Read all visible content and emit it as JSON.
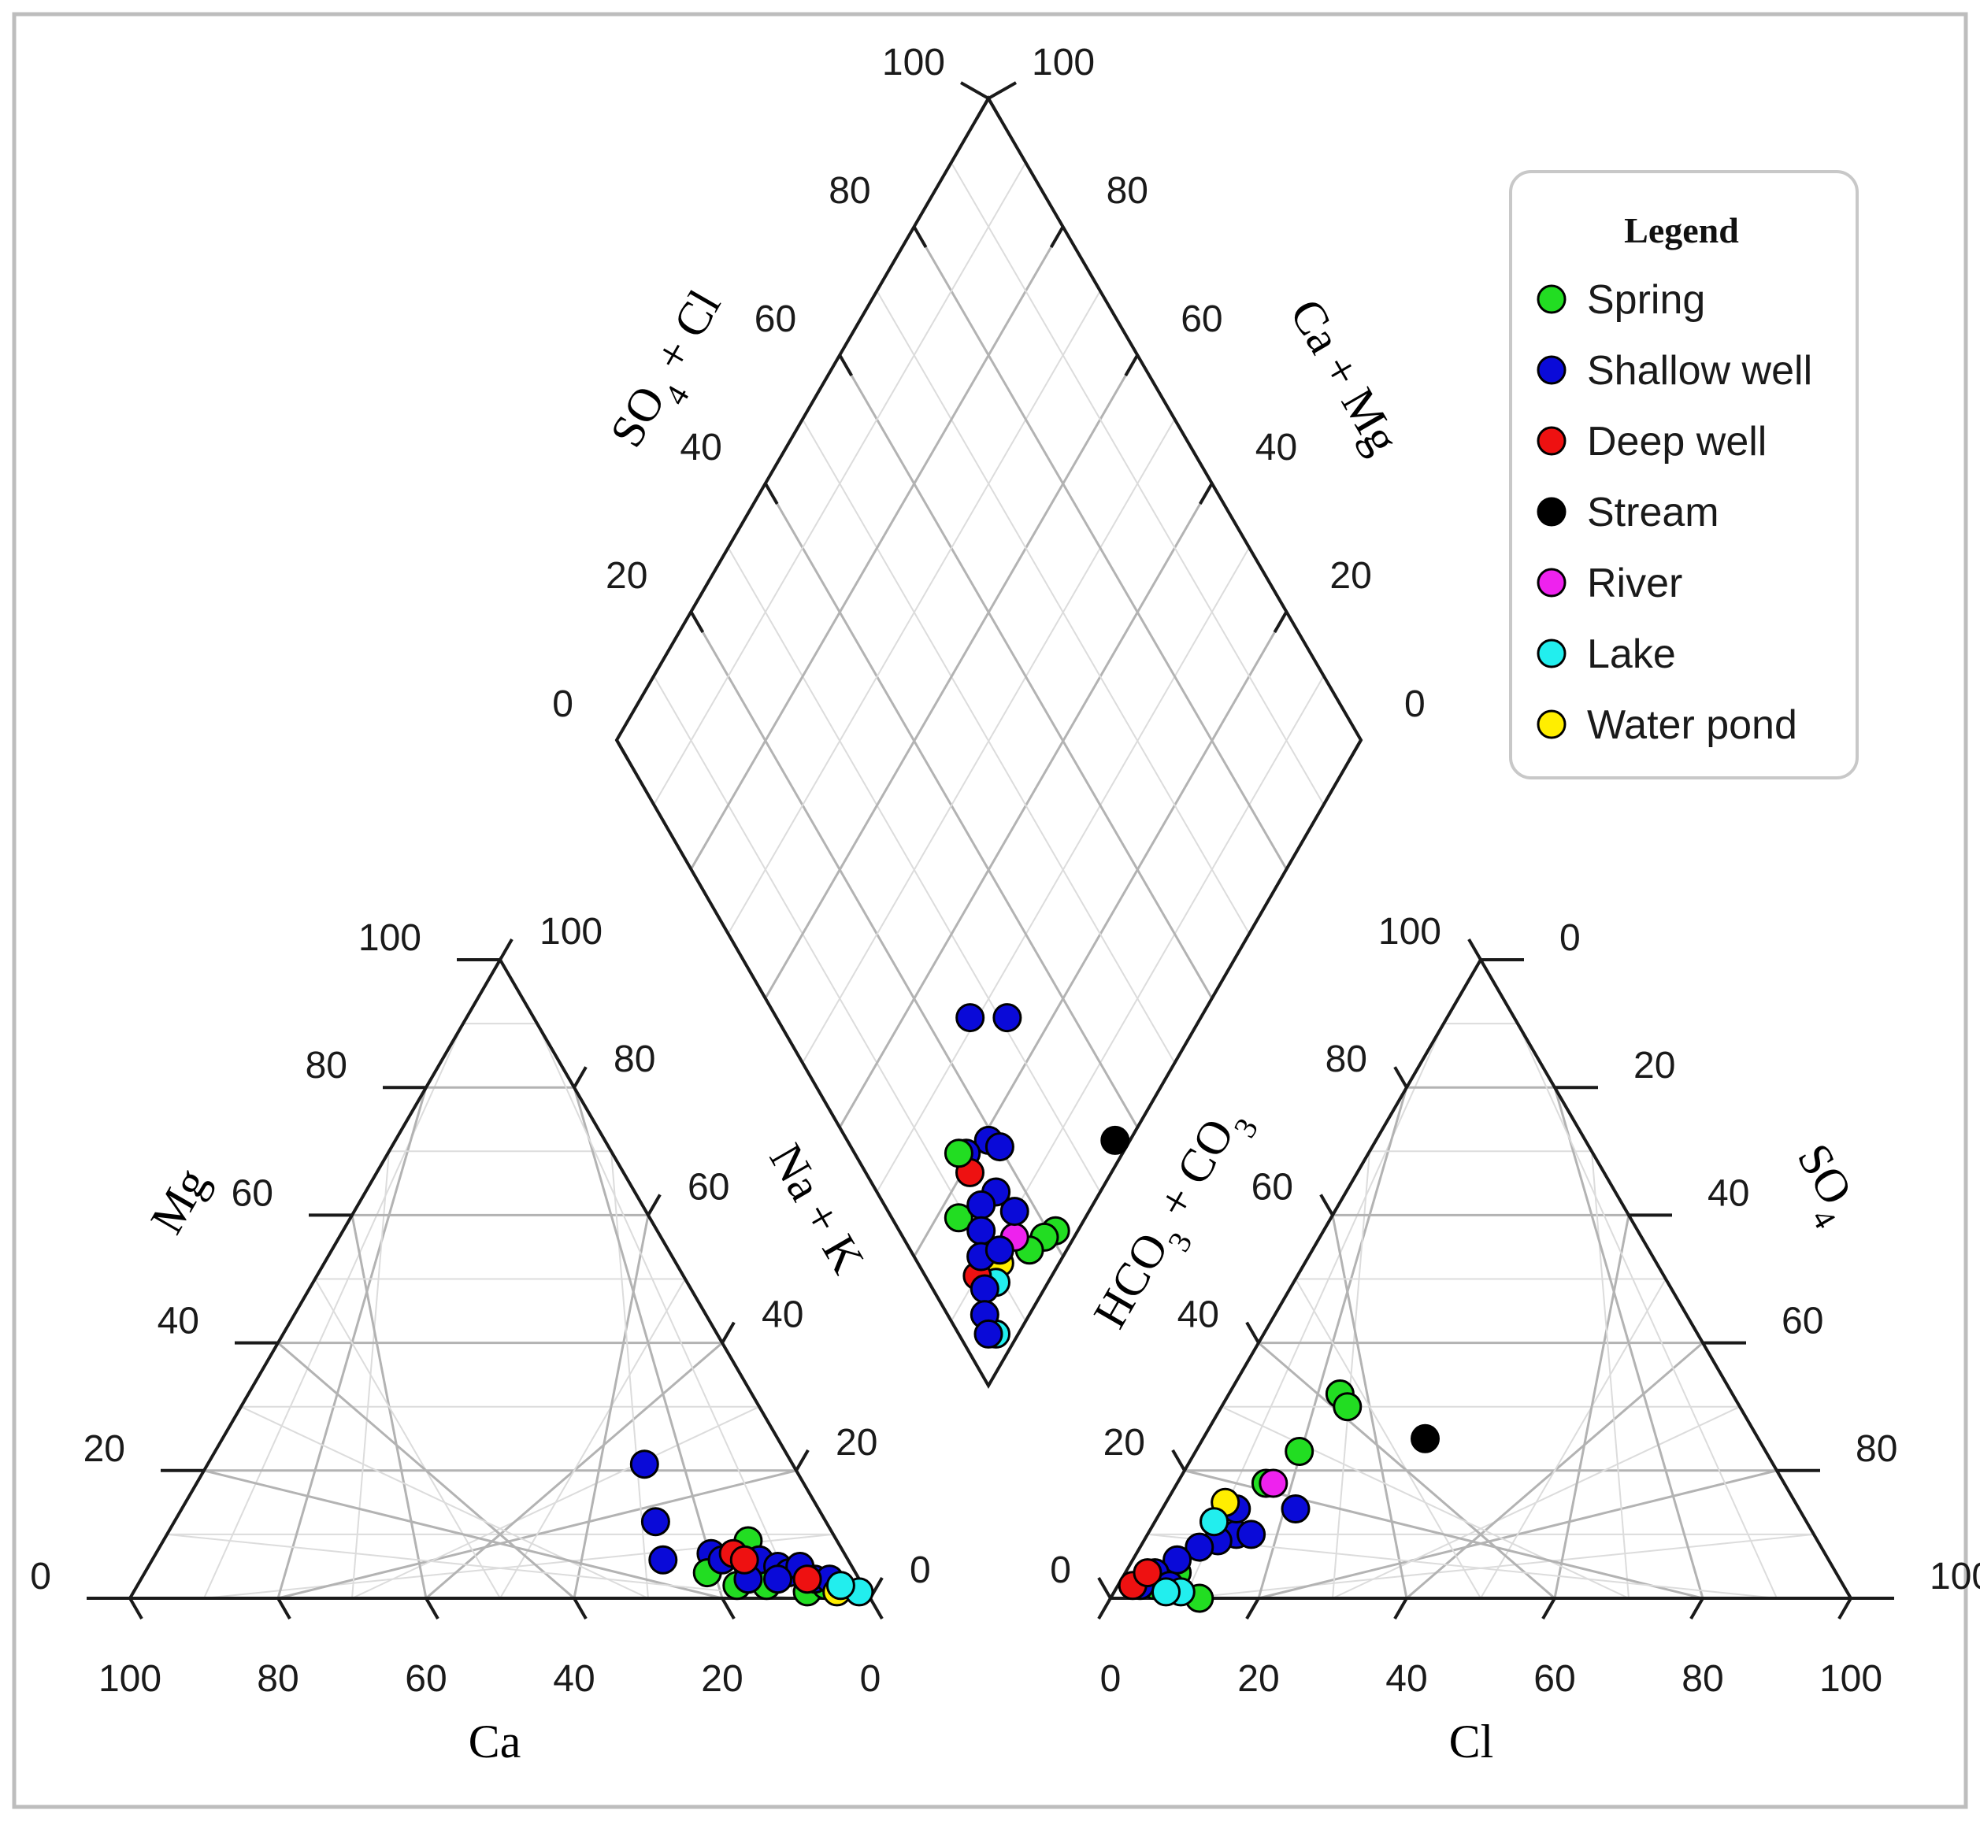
{
  "chart_data": {
    "type": "scatter",
    "diagram": "Piper",
    "legend": {
      "title": "Legend",
      "placement": "top-right",
      "items": [
        {
          "label": "Spring",
          "color": "#22dd22"
        },
        {
          "label": "Shallow well",
          "color": "#0a0ad8"
        },
        {
          "label": "Deep well",
          "color": "#ee1111"
        },
        {
          "label": "Stream",
          "color": "#000000"
        },
        {
          "label": "River",
          "color": "#ee22ee"
        },
        {
          "label": "Lake",
          "color": "#22eeee"
        },
        {
          "label": "Water pond",
          "color": "#ffee00"
        }
      ]
    },
    "cation_triangle": {
      "axis_labels": {
        "bottom": "Ca",
        "left": "Mg",
        "right": "Na + K"
      },
      "ticks": {
        "bottom": [
          "100",
          "80",
          "60",
          "40",
          "20",
          "0"
        ],
        "left": [
          "0",
          "20",
          "40",
          "60",
          "80",
          "100"
        ],
        "right": [
          "0",
          "20",
          "40",
          "60",
          "80",
          "100"
        ]
      },
      "points": [
        {
          "type": "Shallow well",
          "Ca": 20,
          "Mg": 21
        },
        {
          "type": "Shallow well",
          "Ca": 23,
          "Mg": 12
        },
        {
          "type": "Shallow well",
          "Ca": 25,
          "Mg": 6
        },
        {
          "type": "Shallow well",
          "Ca": 18,
          "Mg": 7
        },
        {
          "type": "Spring",
          "Ca": 20,
          "Mg": 4
        },
        {
          "type": "Spring",
          "Ca": 17,
          "Mg": 2
        },
        {
          "type": "Spring",
          "Ca": 13,
          "Mg": 2
        },
        {
          "type": "Spring",
          "Ca": 8,
          "Mg": 1
        },
        {
          "type": "Spring",
          "Ca": 12,
          "Mg": 9
        },
        {
          "type": "Spring",
          "Ca": 5,
          "Mg": 2
        },
        {
          "type": "Shallow well",
          "Ca": 17,
          "Mg": 6
        },
        {
          "type": "Shallow well",
          "Ca": 14,
          "Mg": 5
        },
        {
          "type": "Shallow well",
          "Ca": 12,
          "Mg": 6
        },
        {
          "type": "Shallow well",
          "Ca": 10,
          "Mg": 5
        },
        {
          "type": "Shallow well",
          "Ca": 9,
          "Mg": 4
        },
        {
          "type": "Shallow well",
          "Ca": 7,
          "Mg": 5
        },
        {
          "type": "Shallow well",
          "Ca": 6,
          "Mg": 3
        },
        {
          "type": "Shallow well",
          "Ca": 4,
          "Mg": 3
        },
        {
          "type": "Shallow well",
          "Ca": 11,
          "Mg": 3
        },
        {
          "type": "Shallow well",
          "Ca": 15,
          "Mg": 3
        },
        {
          "type": "Deep well",
          "Ca": 15,
          "Mg": 7
        },
        {
          "type": "Deep well",
          "Ca": 14,
          "Mg": 6
        },
        {
          "type": "Deep well",
          "Ca": 7,
          "Mg": 3
        },
        {
          "type": "Water pond",
          "Ca": 4,
          "Mg": 1
        },
        {
          "type": "Lake",
          "Ca": 1,
          "Mg": 1
        },
        {
          "type": "Lake",
          "Ca": 3,
          "Mg": 2
        }
      ]
    },
    "anion_triangle": {
      "axis_labels": {
        "bottom": "Cl",
        "left": "HCO3 + CO3",
        "right": "SO4"
      },
      "ticks": {
        "bottom": [
          "0",
          "20",
          "40",
          "60",
          "80",
          "100"
        ],
        "left": [
          "0",
          "20",
          "40",
          "60",
          "80",
          "100"
        ],
        "right": [
          "100",
          "80",
          "60",
          "40",
          "20",
          "0"
        ]
      },
      "points": [
        {
          "type": "Stream",
          "Cl": 30,
          "SO4": 25
        },
        {
          "type": "Spring",
          "Cl": 15,
          "SO4": 32
        },
        {
          "type": "Spring",
          "Cl": 17,
          "SO4": 30
        },
        {
          "type": "Spring",
          "Cl": 14,
          "SO4": 23
        },
        {
          "type": "Spring",
          "Cl": 12,
          "SO4": 18
        },
        {
          "type": "Spring",
          "Cl": 8,
          "SO4": 12
        },
        {
          "type": "Spring",
          "Cl": 7,
          "SO4": 4
        },
        {
          "type": "Spring",
          "Cl": 12,
          "SO4": 0
        },
        {
          "type": "Spring",
          "Cl": 5,
          "SO4": 2
        },
        {
          "type": "River",
          "Cl": 13,
          "SO4": 18
        },
        {
          "type": "Shallow well",
          "Cl": 18,
          "SO4": 14
        },
        {
          "type": "Shallow well",
          "Cl": 12,
          "SO4": 10
        },
        {
          "type": "Shallow well",
          "Cl": 10,
          "SO4": 9
        },
        {
          "type": "Shallow well",
          "Cl": 8,
          "SO4": 8
        },
        {
          "type": "Shallow well",
          "Cl": 6,
          "SO4": 6
        },
        {
          "type": "Shallow well",
          "Cl": 4,
          "SO4": 4
        },
        {
          "type": "Shallow well",
          "Cl": 3,
          "SO4": 2
        },
        {
          "type": "Shallow well",
          "Cl": 7,
          "SO4": 2
        },
        {
          "type": "Shallow well",
          "Cl": 14,
          "SO4": 10
        },
        {
          "type": "Shallow well",
          "Cl": 10,
          "SO4": 14
        },
        {
          "type": "Deep well",
          "Cl": 2,
          "SO4": 2
        },
        {
          "type": "Deep well",
          "Cl": 3,
          "SO4": 4
        },
        {
          "type": "Water pond",
          "Cl": 8,
          "SO4": 15
        },
        {
          "type": "Lake",
          "Cl": 9,
          "SO4": 1
        },
        {
          "type": "Lake",
          "Cl": 7,
          "SO4": 1
        },
        {
          "type": "Lake",
          "Cl": 8,
          "SO4": 12
        }
      ]
    },
    "diamond": {
      "axis_labels": {
        "upper_left": "SO4 + Cl",
        "upper_right": "Ca + Mg",
        "lower_left": "Na + K",
        "lower_right": "HCO3 + CO3"
      },
      "ticks": {
        "upper_left": [
          "0",
          "20",
          "40",
          "60",
          "80",
          "100"
        ],
        "upper_right": [
          "0",
          "20",
          "40",
          "60",
          "80",
          "100"
        ]
      },
      "points": [
        {
          "type": "Shallow well",
          "SO4_Cl": 26,
          "Ca_Mg": 31
        },
        {
          "type": "Shallow well",
          "SO4_Cl": 31,
          "Ca_Mg": 26
        },
        {
          "type": "Stream",
          "SO4_Cl": 36,
          "Ca_Mg": 2
        },
        {
          "type": "Shallow well",
          "SO4_Cl": 19,
          "Ca_Mg": 19
        },
        {
          "type": "Shallow well",
          "SO4_Cl": 20,
          "Ca_Mg": 17
        },
        {
          "type": "Shallow well",
          "SO4_Cl": 15,
          "Ca_Mg": 21
        },
        {
          "type": "Spring",
          "SO4_Cl": 21,
          "Ca_Mg": 3
        },
        {
          "type": "Spring",
          "SO4_Cl": 19,
          "Ca_Mg": 4
        },
        {
          "type": "Spring",
          "SO4_Cl": 16,
          "Ca_Mg": 5
        },
        {
          "type": "River",
          "SO4_Cl": 15,
          "Ca_Mg": 8
        },
        {
          "type": "Water pond",
          "SO4_Cl": 11,
          "Ca_Mg": 8
        },
        {
          "type": "Lake",
          "SO4_Cl": 9,
          "Ca_Mg": 7
        },
        {
          "type": "Lake",
          "SO4_Cl": 5,
          "Ca_Mg": 3
        },
        {
          "type": "Deep well",
          "SO4_Cl": 14,
          "Ca_Mg": 19
        },
        {
          "type": "Deep well",
          "SO4_Cl": 7,
          "Ca_Mg": 10
        },
        {
          "type": "Spring",
          "SO4_Cl": 14,
          "Ca_Mg": 22
        },
        {
          "type": "Spring",
          "SO4_Cl": 9,
          "Ca_Mg": 17
        },
        {
          "type": "Shallow well",
          "SO4_Cl": 16,
          "Ca_Mg": 14
        },
        {
          "type": "Shallow well",
          "SO4_Cl": 13,
          "Ca_Mg": 15
        },
        {
          "type": "Shallow well",
          "SO4_Cl": 11,
          "Ca_Mg": 13
        },
        {
          "type": "Shallow well",
          "SO4_Cl": 9,
          "Ca_Mg": 11
        },
        {
          "type": "Shallow well",
          "SO4_Cl": 7,
          "Ca_Mg": 8
        },
        {
          "type": "Shallow well",
          "SO4_Cl": 5,
          "Ca_Mg": 6
        },
        {
          "type": "Shallow well",
          "SO4_Cl": 17,
          "Ca_Mg": 10
        },
        {
          "type": "Shallow well",
          "SO4_Cl": 12,
          "Ca_Mg": 9
        },
        {
          "type": "Shallow well",
          "SO4_Cl": 4,
          "Ca_Mg": 4
        }
      ]
    }
  }
}
